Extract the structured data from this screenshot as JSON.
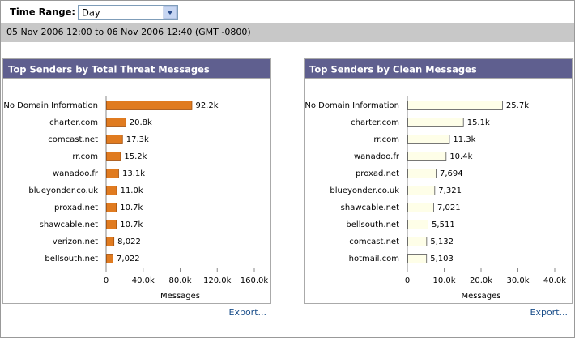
{
  "toolbar": {
    "label": "Time Range:",
    "selected": "Day"
  },
  "date_range": "05 Nov 2006 12:00 to 06 Nov 2006 12:40 (GMT -0800)",
  "export_links": [
    "Export...",
    "Export..."
  ],
  "chart_data": [
    {
      "type": "hbar",
      "title": "Top Senders by Total Threat Messages",
      "x_label": "Messages",
      "categories": [
        "No Domain Information",
        "charter.com",
        "comcast.net",
        "rr.com",
        "wanadoo.fr",
        "blueyonder.co.uk",
        "proxad.net",
        "shawcable.net",
        "verizon.net",
        "bellsouth.net"
      ],
      "values": [
        92200,
        20800,
        17300,
        15200,
        13100,
        11000,
        10700,
        10700,
        8022,
        7022
      ],
      "value_labels": [
        "92.2k",
        "20.8k",
        "17.3k",
        "15.2k",
        "13.1k",
        "11.0k",
        "10.7k",
        "10.7k",
        "8,022",
        "7,022"
      ],
      "color": "#e07b20",
      "border_color": "#a04f0c",
      "xlim": [
        0,
        160000
      ],
      "xticks": [
        0,
        {
          "value": 40000,
          "label": "40.0k"
        },
        {
          "value": 80000,
          "label": "80.0k"
        },
        {
          "value": 120000,
          "label": "120.0k"
        },
        {
          "value": 160000,
          "label": "160.0k"
        }
      ]
    },
    {
      "type": "hbar",
      "title": "Top Senders by Clean Messages",
      "x_label": "Messages",
      "categories": [
        "No Domain Information",
        "charter.com",
        "rr.com",
        "wanadoo.fr",
        "proxad.net",
        "blueyonder.co.uk",
        "shawcable.net",
        "bellsouth.net",
        "comcast.net",
        "hotmail.com"
      ],
      "values": [
        25700,
        15100,
        11300,
        10400,
        7694,
        7321,
        7021,
        5511,
        5132,
        5103
      ],
      "value_labels": [
        "25.7k",
        "15.1k",
        "11.3k",
        "10.4k",
        "7,694",
        "7,321",
        "7,021",
        "5,511",
        "5,132",
        "5,103"
      ],
      "color": "#fefee8",
      "border_color": "#555555",
      "xlim": [
        0,
        40000
      ],
      "xticks": [
        0,
        {
          "value": 10000,
          "label": "10.0k"
        },
        {
          "value": 20000,
          "label": "20.0k"
        },
        {
          "value": 30000,
          "label": "30.0k"
        },
        {
          "value": 40000,
          "label": "40.0k"
        }
      ]
    }
  ]
}
